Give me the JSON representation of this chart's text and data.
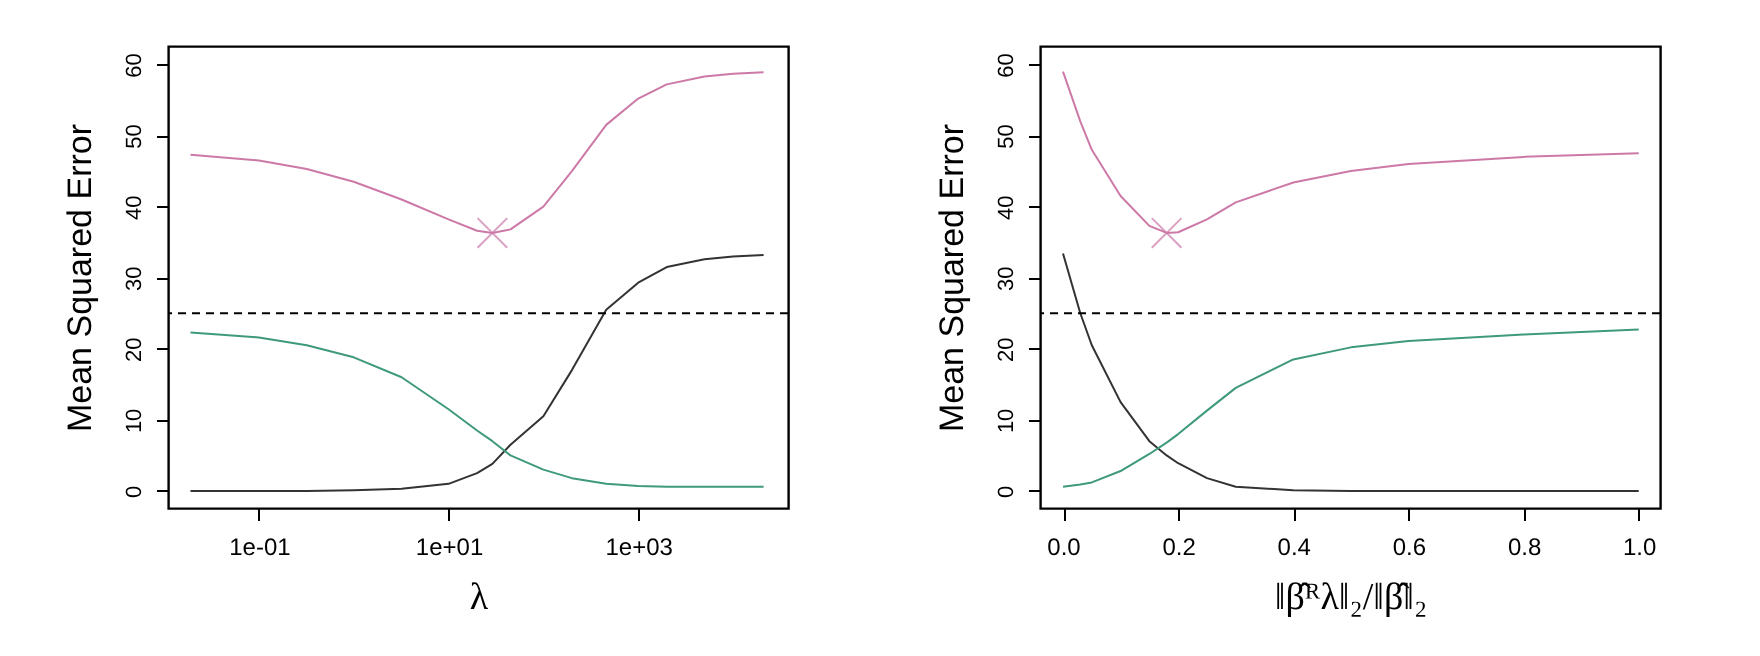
{
  "chart_data": [
    {
      "type": "line",
      "xlabel": "λ",
      "ylabel": "Mean Squared Error",
      "log": "x",
      "grid": false,
      "marker": "none",
      "line_style": "solid",
      "x": [
        0.019,
        0.1,
        0.32,
        1,
        3.2,
        10,
        20,
        29,
        45,
        100,
        200,
        460,
        1000,
        2000,
        5000,
        10000,
        21000
      ],
      "xlim": [
        0.011,
        38000
      ],
      "xticks": [
        {
          "value": 0.1,
          "label": "1e-01"
        },
        {
          "value": 10,
          "label": "1e+01"
        },
        {
          "value": 1000,
          "label": "1e+03"
        }
      ],
      "ylim": [
        -2.4,
        62.6
      ],
      "yticks": [
        0,
        10,
        20,
        30,
        40,
        50,
        60
      ],
      "ref_lines": [
        {
          "axis": "y",
          "value": 25,
          "line_style": "dashed",
          "color": "#000000"
        }
      ],
      "series": [
        {
          "color": "#333333",
          "values": [
            0,
            0,
            0,
            0.1,
            0.3,
            1.0,
            2.5,
            3.8,
            6.5,
            10.5,
            17,
            25.5,
            29.3,
            31.5,
            32.6,
            33.0,
            33.2
          ]
        },
        {
          "color": "#3e9a78",
          "values": [
            22.3,
            21.6,
            20.5,
            18.8,
            16,
            11.5,
            8.5,
            7.0,
            5.0,
            3.0,
            1.8,
            1.0,
            0.7,
            0.6,
            0.6,
            0.6,
            0.6
          ]
        },
        {
          "color": "#cc79a7",
          "values": [
            47.3,
            46.5,
            45.3,
            43.5,
            41,
            38.2,
            36.6,
            36.3,
            36.8,
            40,
            45,
            51.5,
            55.2,
            57.2,
            58.3,
            58.7,
            58.9
          ]
        },
        {
          "type": "scatter",
          "marker": "cross",
          "color": "#cc79a7",
          "x": [
            29
          ],
          "values": [
            36.3
          ]
        }
      ]
    },
    {
      "type": "line",
      "xlabel": "‖β̂ᴿλ‖₂/‖β̂‖₂",
      "ylabel": "Mean Squared Error",
      "grid": false,
      "marker": "none",
      "line_style": "solid",
      "x": [
        0,
        0.03,
        0.05,
        0.1,
        0.15,
        0.18,
        0.2,
        0.25,
        0.3,
        0.4,
        0.5,
        0.6,
        0.8,
        1.0
      ],
      "xlim": [
        -0.04,
        1.037
      ],
      "xticks": [
        {
          "value": 0,
          "label": "0.0"
        },
        {
          "value": 0.2,
          "label": "0.2"
        },
        {
          "value": 0.4,
          "label": "0.4"
        },
        {
          "value": 0.6,
          "label": "0.6"
        },
        {
          "value": 0.8,
          "label": "0.8"
        },
        {
          "value": 1,
          "label": "1.0"
        }
      ],
      "ylim": [
        -2.4,
        62.6
      ],
      "yticks": [
        0,
        10,
        20,
        30,
        40,
        50,
        60
      ],
      "ref_lines": [
        {
          "axis": "y",
          "value": 25,
          "line_style": "dashed",
          "color": "#000000"
        }
      ],
      "series": [
        {
          "color": "#333333",
          "values": [
            33.4,
            25,
            20.5,
            12.5,
            7,
            5,
            3.9,
            1.8,
            0.6,
            0.1,
            0,
            0,
            0,
            0
          ]
        },
        {
          "color": "#3e9a78",
          "values": [
            0.6,
            0.9,
            1.2,
            2.8,
            5.2,
            6.8,
            8,
            11.3,
            14.5,
            18.5,
            20.2,
            21.1,
            22.0,
            22.7
          ]
        },
        {
          "color": "#cc79a7",
          "values": [
            59,
            52,
            48,
            41.5,
            37.3,
            36.3,
            36.4,
            38.2,
            40.6,
            43.4,
            45,
            46,
            47,
            47.5
          ]
        },
        {
          "type": "scatter",
          "marker": "cross",
          "color": "#cc79a7",
          "x": [
            0.18
          ],
          "values": [
            36.3
          ]
        }
      ]
    }
  ]
}
